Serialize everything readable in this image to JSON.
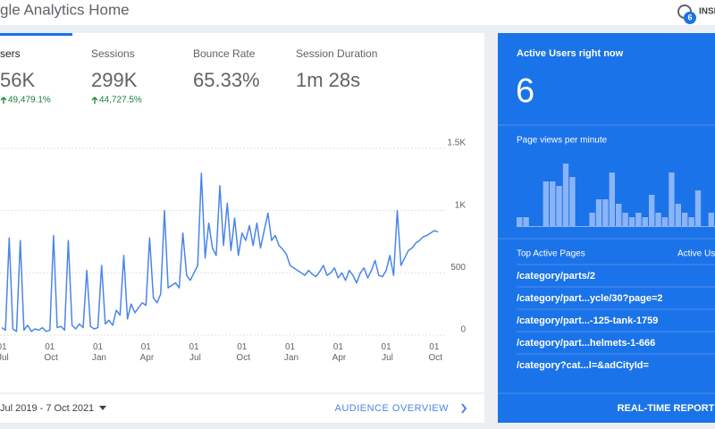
{
  "header": {
    "title": "gle Analytics Home",
    "insights_label": "INSI",
    "insights_count": 6
  },
  "metrics": [
    {
      "label": "sers",
      "value": "56K",
      "change": "49,479.1%"
    },
    {
      "label": "Sessions",
      "value": "299K",
      "change": "44,727.5%"
    },
    {
      "label": "Bounce Rate",
      "value": "65.33%"
    },
    {
      "label": "Session Duration",
      "value": "1m 28s"
    }
  ],
  "chart_data": {
    "type": "line",
    "color": "#4a86e8",
    "categories": [
      "01 Jul",
      null,
      null,
      null,
      null,
      null,
      null,
      null,
      null,
      null,
      null,
      null,
      null,
      "01 Oct",
      null,
      null,
      null,
      null,
      null,
      null,
      null,
      null,
      null,
      null,
      null,
      null,
      "01 Jan",
      null,
      null,
      null,
      null,
      null,
      null,
      null,
      null,
      null,
      null,
      null,
      null,
      "01 Apr",
      null,
      null,
      null,
      null,
      null,
      null,
      null,
      null,
      null,
      null,
      null,
      null,
      "01 Jul",
      null,
      null,
      null,
      null,
      null,
      null,
      null,
      null,
      null,
      null,
      null,
      null,
      "01 Oct",
      null,
      null,
      null,
      null,
      null,
      null,
      null,
      null,
      null,
      null,
      null,
      null,
      "01 Jan",
      null,
      null,
      null,
      null,
      null,
      null,
      null,
      null,
      null,
      null,
      null,
      null,
      "01 Apr",
      null,
      null,
      null,
      null,
      null,
      null,
      null,
      null,
      null,
      null,
      null,
      null,
      "01 Jul",
      null,
      null,
      null,
      null,
      null,
      null,
      null,
      null,
      null,
      null,
      null,
      null,
      "01 Oct",
      null
    ],
    "values": [
      60,
      40,
      780,
      50,
      30,
      760,
      40,
      80,
      30,
      50,
      40,
      60,
      30,
      40,
      800,
      60,
      70,
      40,
      760,
      80,
      50,
      90,
      60,
      520,
      70,
      50,
      60,
      560,
      90,
      120,
      80,
      200,
      160,
      640,
      130,
      250,
      180,
      220,
      260,
      240,
      780,
      300,
      260,
      330,
      1000,
      380,
      400,
      420,
      380,
      820,
      480,
      440,
      500,
      560,
      1300,
      620,
      900,
      700,
      640,
      1200,
      720,
      1060,
      680,
      940,
      640,
      820,
      760,
      880,
      720,
      900,
      700,
      840,
      980,
      760,
      800,
      720,
      690,
      650,
      560,
      540,
      520,
      500,
      480,
      520,
      490,
      470,
      510,
      560,
      480,
      500,
      540,
      460,
      500,
      440,
      520,
      480,
      420,
      500,
      540,
      460,
      520,
      600,
      480,
      470,
      520,
      640,
      480,
      1000,
      560,
      620,
      680,
      700,
      740,
      760,
      790,
      800,
      820,
      840,
      830
    ],
    "ylim": [
      0,
      1500
    ],
    "yticks": [
      0,
      500,
      {
        "value": 1000,
        "label": "1K"
      },
      {
        "value": 1500,
        "label": "1.5K"
      }
    ],
    "grid": true
  },
  "footer": {
    "date_range": "Jul 2019 - 7 Oct 2021",
    "link": "AUDIENCE OVERVIEW"
  },
  "realtime": {
    "title": "Active Users right now",
    "active_users": "6",
    "subtitle": "Page views per minute",
    "page_views": [
      2,
      2,
      0,
      0,
      10,
      10,
      9,
      14,
      11,
      0,
      0,
      3,
      6,
      6,
      12,
      5,
      3,
      2,
      3,
      2,
      7,
      3,
      2,
      12,
      5,
      3,
      2,
      8,
      0,
      3
    ],
    "pages_header": "Top Active Pages",
    "users_header": "Active Use",
    "pages": [
      "/category/parts/2",
      "/category/part...ycle/30?page=2",
      "/category/part...-125-tank-1759",
      "/category/part...helmets-1-666",
      "/category?cat...l=&adCityId="
    ],
    "link": "REAL-TIME REPORT"
  }
}
